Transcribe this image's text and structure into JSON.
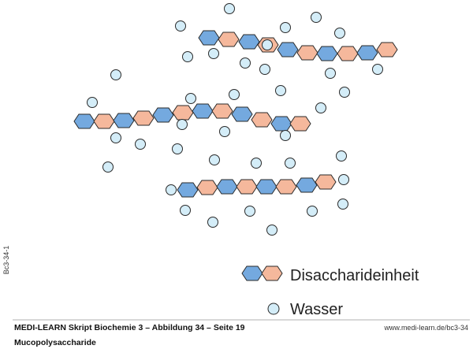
{
  "side_label": "Bc3-34-1",
  "legend": {
    "disaccharide": "Disaccharideinheit",
    "water": "Wasser"
  },
  "footer": {
    "source": "MEDI-LEARN Skript Biochemie 3 – Abbildung 34 – Seite 19",
    "url": "www.medi-learn.de/bc3-34",
    "caption": "Mucopolysaccharide"
  }
}
